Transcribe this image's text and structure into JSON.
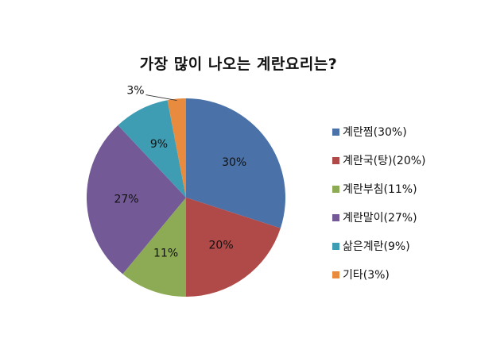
{
  "chart_data": {
    "type": "pie",
    "title": "가장 많이 나오는 계란요리는?",
    "categories": [
      "계란찜(30%)",
      "계란국(탕)(20%)",
      "계란부침(11%)",
      "계란말이(27%)",
      "삶은계란(9%)",
      "기타(3%)"
    ],
    "values": [
      30,
      20,
      11,
      27,
      9,
      3
    ],
    "data_labels": [
      "30%",
      "20%",
      "11%",
      "27%",
      "9%",
      "3%"
    ],
    "colors": [
      "#4a72a8",
      "#b04a48",
      "#8dab54",
      "#735a97",
      "#3f9db3",
      "#e88b3e"
    ],
    "legend_position": "right",
    "grid": false
  }
}
